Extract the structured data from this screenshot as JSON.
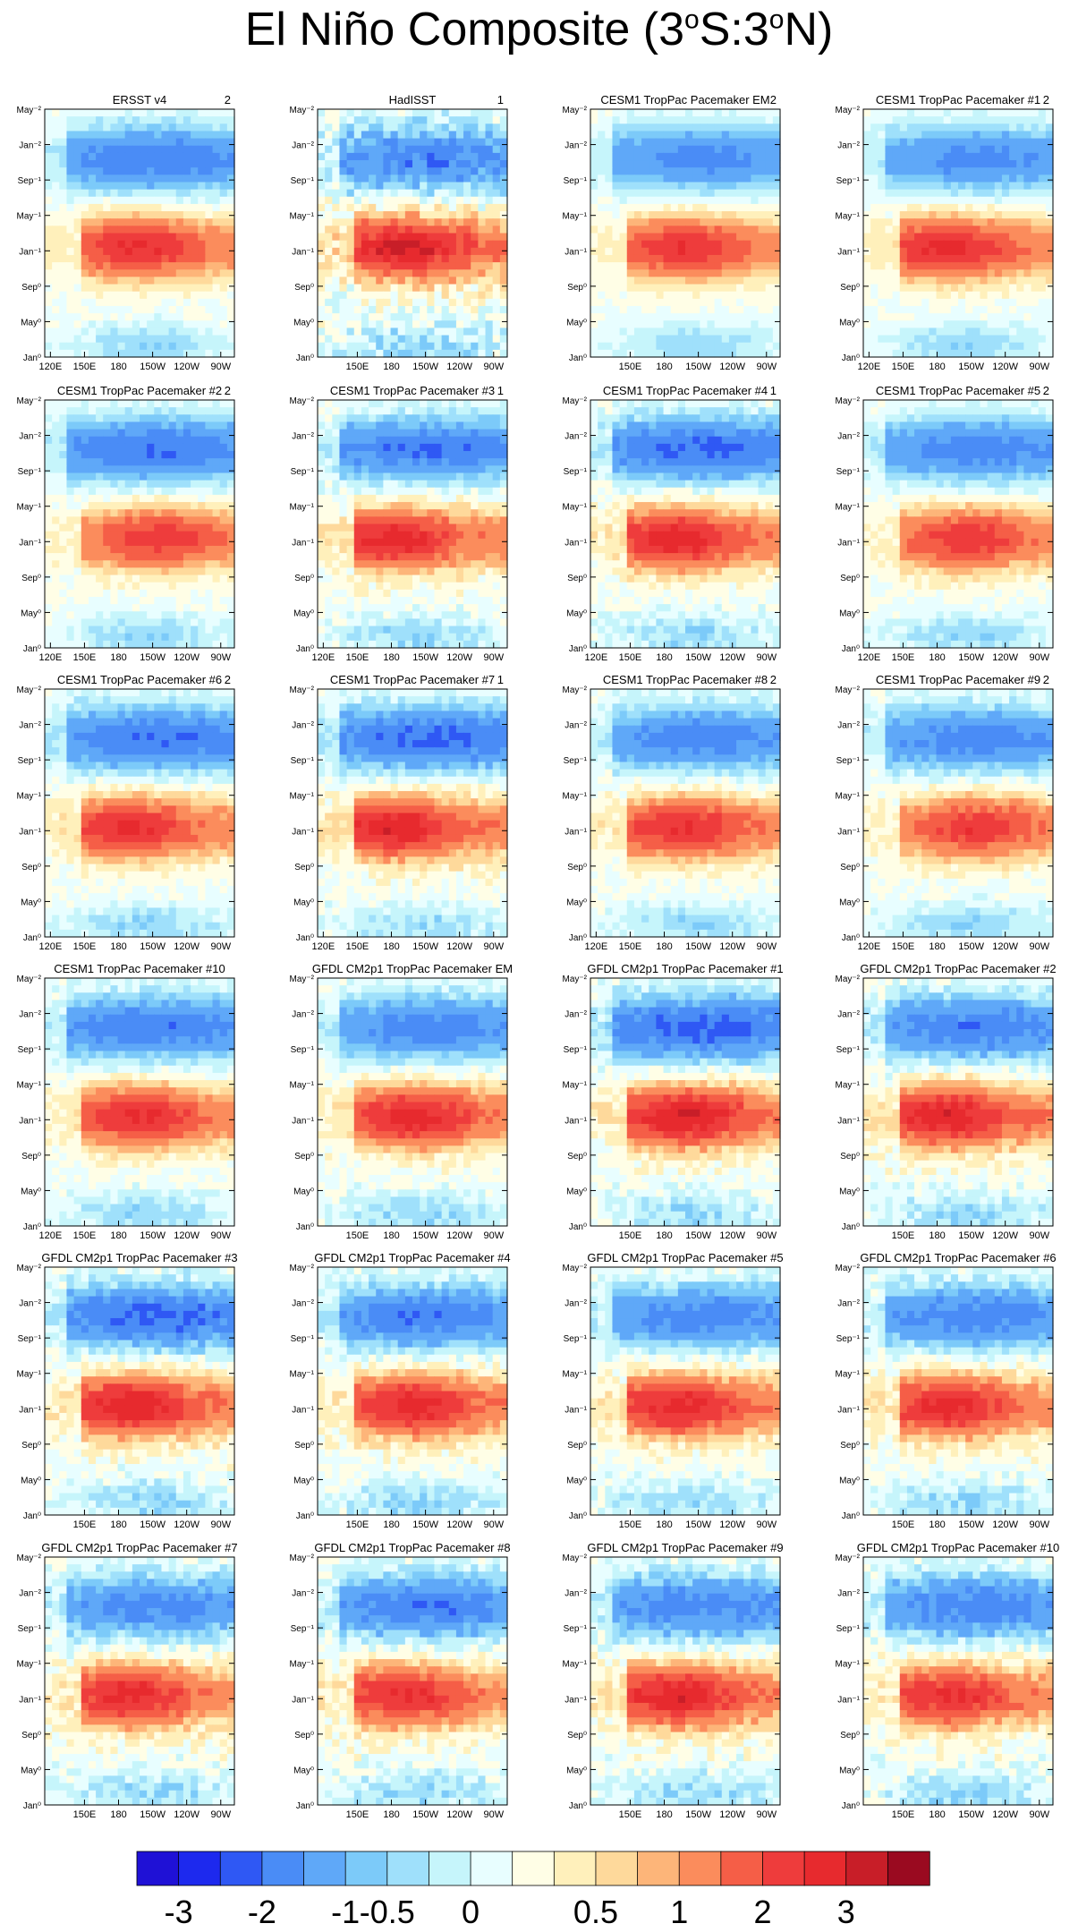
{
  "title": {
    "prefix": "El Niño Composite (3",
    "sup1": "o",
    "mid": "S:3",
    "sup2": "o",
    "suffix": "N)"
  },
  "chart_data": {
    "type": "heatmap",
    "description_axes": "Hovmöller composite: longitude (x) vs. lag month (y)",
    "y_ticks": [
      "May⁻²",
      "Jan⁻²",
      "Sep⁻¹",
      "May⁻¹",
      "Jan⁻¹",
      "Sep⁰",
      "May⁰",
      "Jan⁰"
    ],
    "x_ticks_full": [
      "120E",
      "150E",
      "180",
      "150W",
      "120W",
      "90W"
    ],
    "x_ticks_short": [
      "150E",
      "180",
      "150W",
      "120W",
      "90W"
    ],
    "panels": [
      {
        "title": "ERSST v4",
        "corner": "2",
        "xticks": "full"
      },
      {
        "title": "HadISST",
        "corner": "1",
        "xticks": "short"
      },
      {
        "title": "CESM1 TropPac Pacemaker EM",
        "corner": "2",
        "xticks": "short"
      },
      {
        "title": "CESM1 TropPac Pacemaker #1",
        "corner": "2",
        "xticks": "full"
      },
      {
        "title": "CESM1 TropPac Pacemaker #2",
        "corner": "2",
        "xticks": "full"
      },
      {
        "title": "CESM1 TropPac Pacemaker #3",
        "corner": "1",
        "xticks": "full"
      },
      {
        "title": "CESM1 TropPac Pacemaker #4",
        "corner": "1",
        "xticks": "full"
      },
      {
        "title": "CESM1 TropPac Pacemaker #5",
        "corner": "2",
        "xticks": "full"
      },
      {
        "title": "CESM1 TropPac Pacemaker #6",
        "corner": "2",
        "xticks": "full"
      },
      {
        "title": "CESM1 TropPac Pacemaker #7",
        "corner": "1",
        "xticks": "full"
      },
      {
        "title": "CESM1 TropPac Pacemaker #8",
        "corner": "2",
        "xticks": "full"
      },
      {
        "title": "CESM1 TropPac Pacemaker #9",
        "corner": "2",
        "xticks": "full"
      },
      {
        "title": "CESM1 TropPac Pacemaker #10",
        "corner": "",
        "xticks": "full"
      },
      {
        "title": "GFDL CM2p1 TropPac Pacemaker EM",
        "corner": "",
        "xticks": "short"
      },
      {
        "title": "GFDL CM2p1 TropPac Pacemaker #1",
        "corner": "",
        "xticks": "short"
      },
      {
        "title": "GFDL CM2p1 TropPac Pacemaker #2",
        "corner": "",
        "xticks": "short"
      },
      {
        "title": "GFDL CM2p1 TropPac Pacemaker #3",
        "corner": "",
        "xticks": "short"
      },
      {
        "title": "GFDL CM2p1 TropPac Pacemaker #4",
        "corner": "",
        "xticks": "short"
      },
      {
        "title": "GFDL CM2p1 TropPac Pacemaker #5",
        "corner": "",
        "xticks": "short"
      },
      {
        "title": "GFDL CM2p1 TropPac Pacemaker #6",
        "corner": "",
        "xticks": "short"
      },
      {
        "title": "GFDL CM2p1 TropPac Pacemaker #7",
        "corner": "",
        "xticks": "short"
      },
      {
        "title": "GFDL CM2p1 TropPac Pacemaker #8",
        "corner": "",
        "xticks": "short"
      },
      {
        "title": "GFDL CM2p1 TropPac Pacemaker #9",
        "corner": "",
        "xticks": "short"
      },
      {
        "title": "GFDL CM2p1 TropPac Pacemaker #10",
        "corner": "",
        "xticks": "short"
      }
    ],
    "colorbar": {
      "colors": [
        "#1f11d6",
        "#1d29ee",
        "#2f58f4",
        "#4a8cf6",
        "#5fa8f8",
        "#7ccaf9",
        "#9fe0fb",
        "#c6f5fb",
        "#e8feff",
        "#fffee6",
        "#fff0bb",
        "#fed99b",
        "#fdb579",
        "#fb8c5c",
        "#f55e47",
        "#ee3c3c",
        "#e72a2e",
        "#c81e28",
        "#9a0a20"
      ],
      "labels": [
        "-3",
        "-2",
        "-1",
        "-0.5",
        "0",
        "0.5",
        "1",
        "2",
        "3"
      ]
    }
  }
}
